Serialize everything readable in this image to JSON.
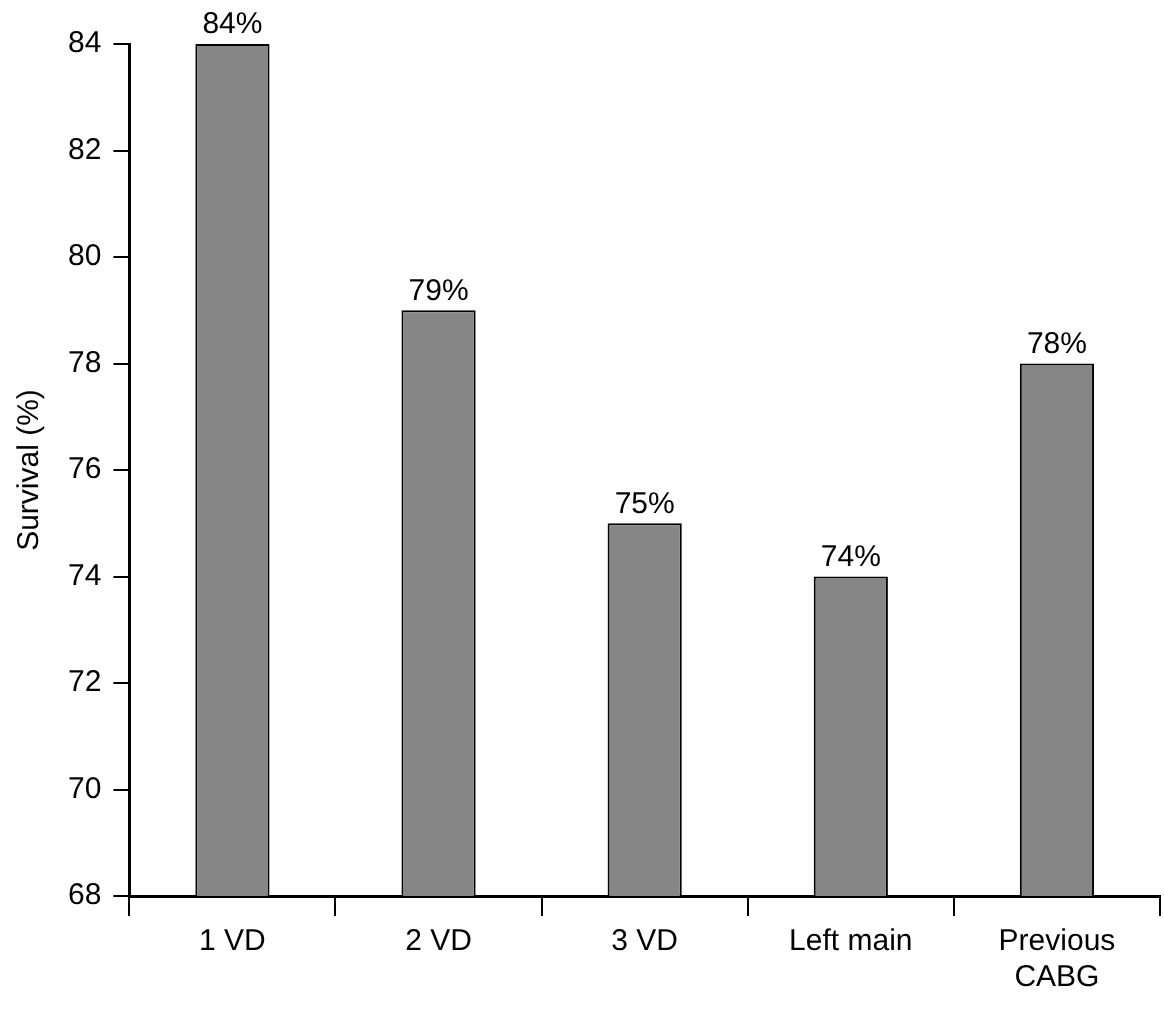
{
  "chart_data": {
    "type": "bar",
    "ylabel": "Survival (%)",
    "categories": [
      "1 VD",
      "2 VD",
      "3 VD",
      "Left main",
      "Previous CABG"
    ],
    "values": [
      84,
      79,
      75,
      74,
      78
    ],
    "value_labels": [
      "84%",
      "79%",
      "75%",
      "74%",
      "78%"
    ],
    "color": "#868686",
    "ylim": [
      68,
      84
    ],
    "yticks": [
      68,
      70,
      72,
      74,
      76,
      78,
      80,
      82,
      84
    ],
    "grid": false,
    "legend": false
  }
}
